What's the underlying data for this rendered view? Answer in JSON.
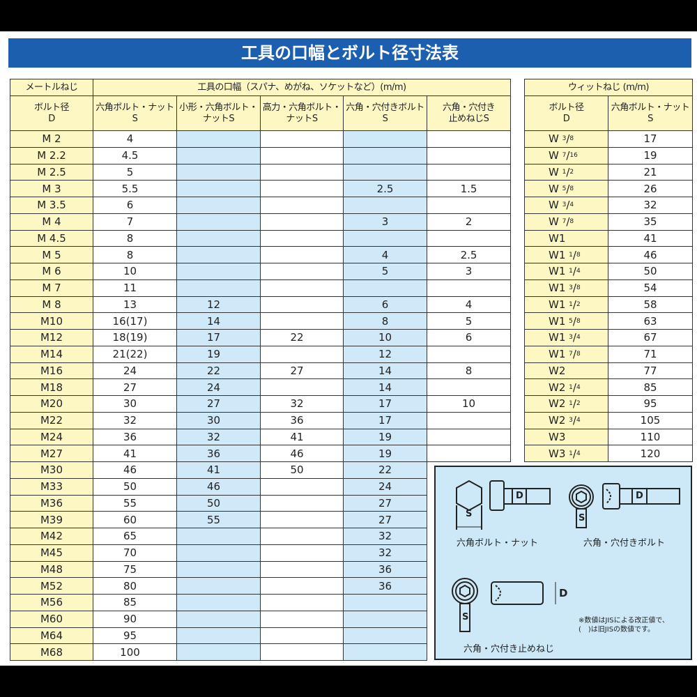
{
  "title": "工具の口幅とボルト径寸法表",
  "metric": {
    "header_left": "メートルねじ",
    "header_group": "工具の口幅（スパナ、めがね、ソケットなど）(m/m)",
    "columns": [
      "ボルト径\nD",
      "六角ボルト・ナット\nS",
      "小形・六角ボルト・\nナットS",
      "高力・六角ボルト・\nナットS",
      "六角・穴付きボルト\nS",
      "六角・穴付き\n止めねじS"
    ],
    "rows": [
      [
        "M 2",
        "4",
        "",
        "",
        "",
        ""
      ],
      [
        "M 2.2",
        "4.5",
        "",
        "",
        "",
        ""
      ],
      [
        "M 2.5",
        "5",
        "",
        "",
        "",
        ""
      ],
      [
        "M 3",
        "5.5",
        "",
        "",
        "2.5",
        "1.5"
      ],
      [
        "M 3.5",
        "6",
        "",
        "",
        "",
        ""
      ],
      [
        "M 4",
        "7",
        "",
        "",
        "3",
        "2"
      ],
      [
        "M 4.5",
        "8",
        "",
        "",
        "",
        ""
      ],
      [
        "M 5",
        "8",
        "",
        "",
        "4",
        "2.5"
      ],
      [
        "M 6",
        "10",
        "",
        "",
        "5",
        "3"
      ],
      [
        "M 7",
        "11",
        "",
        "",
        "",
        ""
      ],
      [
        "M 8",
        "13",
        "12",
        "",
        "6",
        "4"
      ],
      [
        "M10",
        "16(17)",
        "14",
        "",
        "8",
        "5"
      ],
      [
        "M12",
        "18(19)",
        "17",
        "22",
        "10",
        "6"
      ],
      [
        "M14",
        "21(22)",
        "19",
        "",
        "12",
        ""
      ],
      [
        "M16",
        "24",
        "22",
        "27",
        "14",
        "8"
      ],
      [
        "M18",
        "27",
        "24",
        "",
        "14",
        ""
      ],
      [
        "M20",
        "30",
        "27",
        "32",
        "17",
        "10"
      ],
      [
        "M22",
        "32",
        "30",
        "36",
        "17",
        ""
      ],
      [
        "M24",
        "36",
        "32",
        "41",
        "19",
        ""
      ],
      [
        "M27",
        "41",
        "36",
        "46",
        "19",
        ""
      ],
      [
        "M30",
        "46",
        "41",
        "50",
        "22"
      ],
      [
        "M33",
        "50",
        "46",
        "",
        "24"
      ],
      [
        "M36",
        "55",
        "50",
        "",
        "27"
      ],
      [
        "M39",
        "60",
        "55",
        "",
        "27"
      ],
      [
        "M42",
        "65",
        "",
        "",
        "32"
      ],
      [
        "M45",
        "70",
        "",
        "",
        "32"
      ],
      [
        "M48",
        "75",
        "",
        "",
        "36"
      ],
      [
        "M52",
        "80",
        "",
        "",
        "36"
      ],
      [
        "M56",
        "85",
        "",
        "",
        ""
      ],
      [
        "M60",
        "90",
        "",
        "",
        ""
      ],
      [
        "M64",
        "95",
        "",
        "",
        ""
      ],
      [
        "M68",
        "100",
        "",
        "",
        ""
      ]
    ]
  },
  "whitworth": {
    "header": "ウィットねじ (m/m)",
    "columns": [
      "ボルト径\nD",
      "六角ボルト・ナット\nS"
    ],
    "rows": [
      {
        "w": "W",
        "n": "3",
        "d": "8",
        "s": "17"
      },
      {
        "w": "W",
        "n": "7",
        "d": "16",
        "s": "19"
      },
      {
        "w": "W",
        "n": "1",
        "d": "2",
        "s": "21"
      },
      {
        "w": "W",
        "n": "5",
        "d": "8",
        "s": "26"
      },
      {
        "w": "W",
        "n": "3",
        "d": "4",
        "s": "32"
      },
      {
        "w": "W",
        "n": "7",
        "d": "8",
        "s": "35"
      },
      {
        "w": "W1",
        "n": "",
        "d": "",
        "s": "41"
      },
      {
        "w": "W1",
        "n": "1",
        "d": "8",
        "s": "46"
      },
      {
        "w": "W1",
        "n": "1",
        "d": "4",
        "s": "50"
      },
      {
        "w": "W1",
        "n": "3",
        "d": "8",
        "s": "54"
      },
      {
        "w": "W1",
        "n": "1",
        "d": "2",
        "s": "58"
      },
      {
        "w": "W1",
        "n": "5",
        "d": "8",
        "s": "63"
      },
      {
        "w": "W1",
        "n": "3",
        "d": "4",
        "s": "67"
      },
      {
        "w": "W1",
        "n": "7",
        "d": "8",
        "s": "71"
      },
      {
        "w": "W2",
        "n": "",
        "d": "",
        "s": "77"
      },
      {
        "w": "W2",
        "n": "1",
        "d": "4",
        "s": "85"
      },
      {
        "w": "W2",
        "n": "1",
        "d": "2",
        "s": "95"
      },
      {
        "w": "W2",
        "n": "3",
        "d": "4",
        "s": "105"
      },
      {
        "w": "W3",
        "n": "",
        "d": "",
        "s": "110"
      },
      {
        "w": "W3",
        "n": "1",
        "d": "4",
        "s": "120"
      }
    ]
  },
  "diagram": {
    "label_hex": "六角ボルト・ナット",
    "label_socket": "六角・穴付きボルト",
    "label_setscrew": "六角・穴付き止めねじ",
    "letter_s": "S",
    "letter_d": "D",
    "note_1": "※数値はJISによる改正値で、",
    "note_2": "(　)は旧JISの数値です。"
  },
  "colors": {
    "title_bar": "#1c5faf",
    "header_yellow": "#fdf7c4",
    "highlight_blue": "#cfe9f8"
  }
}
